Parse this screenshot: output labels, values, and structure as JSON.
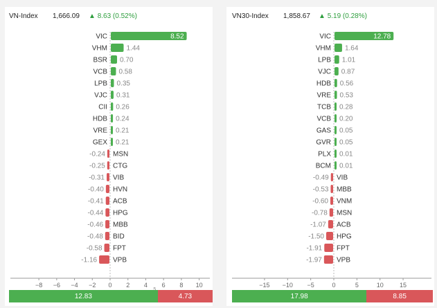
{
  "colors": {
    "positive": "#4caf50",
    "negative": "#d9575a",
    "text": "#333333",
    "axis": "#999999"
  },
  "panels": [
    {
      "index_name": "VN-Index",
      "index_value": "1,666.09",
      "change_arrow": "▲",
      "change_text": "8.63 (0.52%)",
      "chart_data": {
        "type": "bar",
        "orientation": "horizontal",
        "categories": [
          "VIC",
          "VHM",
          "BSR",
          "VCB",
          "LPB",
          "VJC",
          "CII",
          "HDB",
          "VRE",
          "GEX",
          "MSN",
          "CTG",
          "VIB",
          "HVN",
          "ACB",
          "HPG",
          "MBB",
          "BID",
          "FPT",
          "VPB"
        ],
        "values": [
          8.52,
          1.44,
          0.7,
          0.58,
          0.35,
          0.31,
          0.26,
          0.24,
          0.21,
          0.21,
          -0.24,
          -0.25,
          -0.31,
          -0.4,
          -0.41,
          -0.44,
          -0.46,
          -0.48,
          -0.58,
          -1.16
        ],
        "value_labels": [
          "8.52",
          "1.44",
          "0.70",
          "0.58",
          "0.35",
          "0.31",
          "0.26",
          "0.24",
          "0.21",
          "0.21",
          "-0.24",
          "-0.25",
          "-0.31",
          "-0.40",
          "-0.41",
          "-0.44",
          "-0.46",
          "-0.48",
          "-0.58",
          "-1.16"
        ],
        "xlim": [
          -9,
          10
        ],
        "xticks": [
          -8,
          -6,
          -4,
          -2,
          0,
          2,
          4,
          6,
          8,
          10
        ],
        "xtick_labels": [
          "−8",
          "−6",
          "−4",
          "−2",
          "0",
          "2",
          "4",
          "6",
          "8",
          "10"
        ],
        "tick_labels": [
          "−8",
          "−6",
          "−4",
          "−2",
          "0",
          "2",
          "4",
          "6",
          "8",
          "10"
        ],
        "extra_tick_label": "5"
      },
      "totals": {
        "positive": "12.83",
        "negative": "4.73",
        "positive_value": 12.83,
        "negative_value": 4.73
      }
    },
    {
      "index_name": "VN30-Index",
      "index_value": "1,858.67",
      "change_arrow": "▲",
      "change_text": "5.19 (0.28%)",
      "chart_data": {
        "type": "bar",
        "orientation": "horizontal",
        "categories": [
          "VIC",
          "VHM",
          "LPB",
          "VJC",
          "HDB",
          "VRE",
          "TCB",
          "VCB",
          "GAS",
          "GVR",
          "PLX",
          "BCM",
          "VIB",
          "MBB",
          "VNM",
          "MSN",
          "ACB",
          "HPG",
          "FPT",
          "VPB"
        ],
        "values": [
          12.78,
          1.64,
          1.01,
          0.87,
          0.56,
          0.53,
          0.28,
          0.2,
          0.05,
          0.05,
          0.01,
          0.01,
          -0.49,
          -0.53,
          -0.6,
          -0.78,
          -1.07,
          -1.5,
          -1.91,
          -1.97
        ],
        "value_labels": [
          "12.78",
          "1.64",
          "1.01",
          "0.87",
          "0.56",
          "0.53",
          "0.28",
          "0.20",
          "0.05",
          "0.05",
          "0.01",
          "0.01",
          "-0.49",
          "-0.53",
          "-0.60",
          "-0.78",
          "-1.07",
          "-1.50",
          "-1.91",
          "-1.97"
        ],
        "xlim": [
          -17,
          15
        ],
        "xticks": [
          -15,
          -10,
          -5,
          0,
          5,
          10,
          15
        ],
        "tick_labels": [
          "−15",
          "−10",
          "−5",
          "0",
          "5",
          "10",
          "15"
        ]
      },
      "totals": {
        "positive": "17.98",
        "negative": "8.85",
        "positive_value": 17.98,
        "negative_value": 8.85
      }
    }
  ]
}
